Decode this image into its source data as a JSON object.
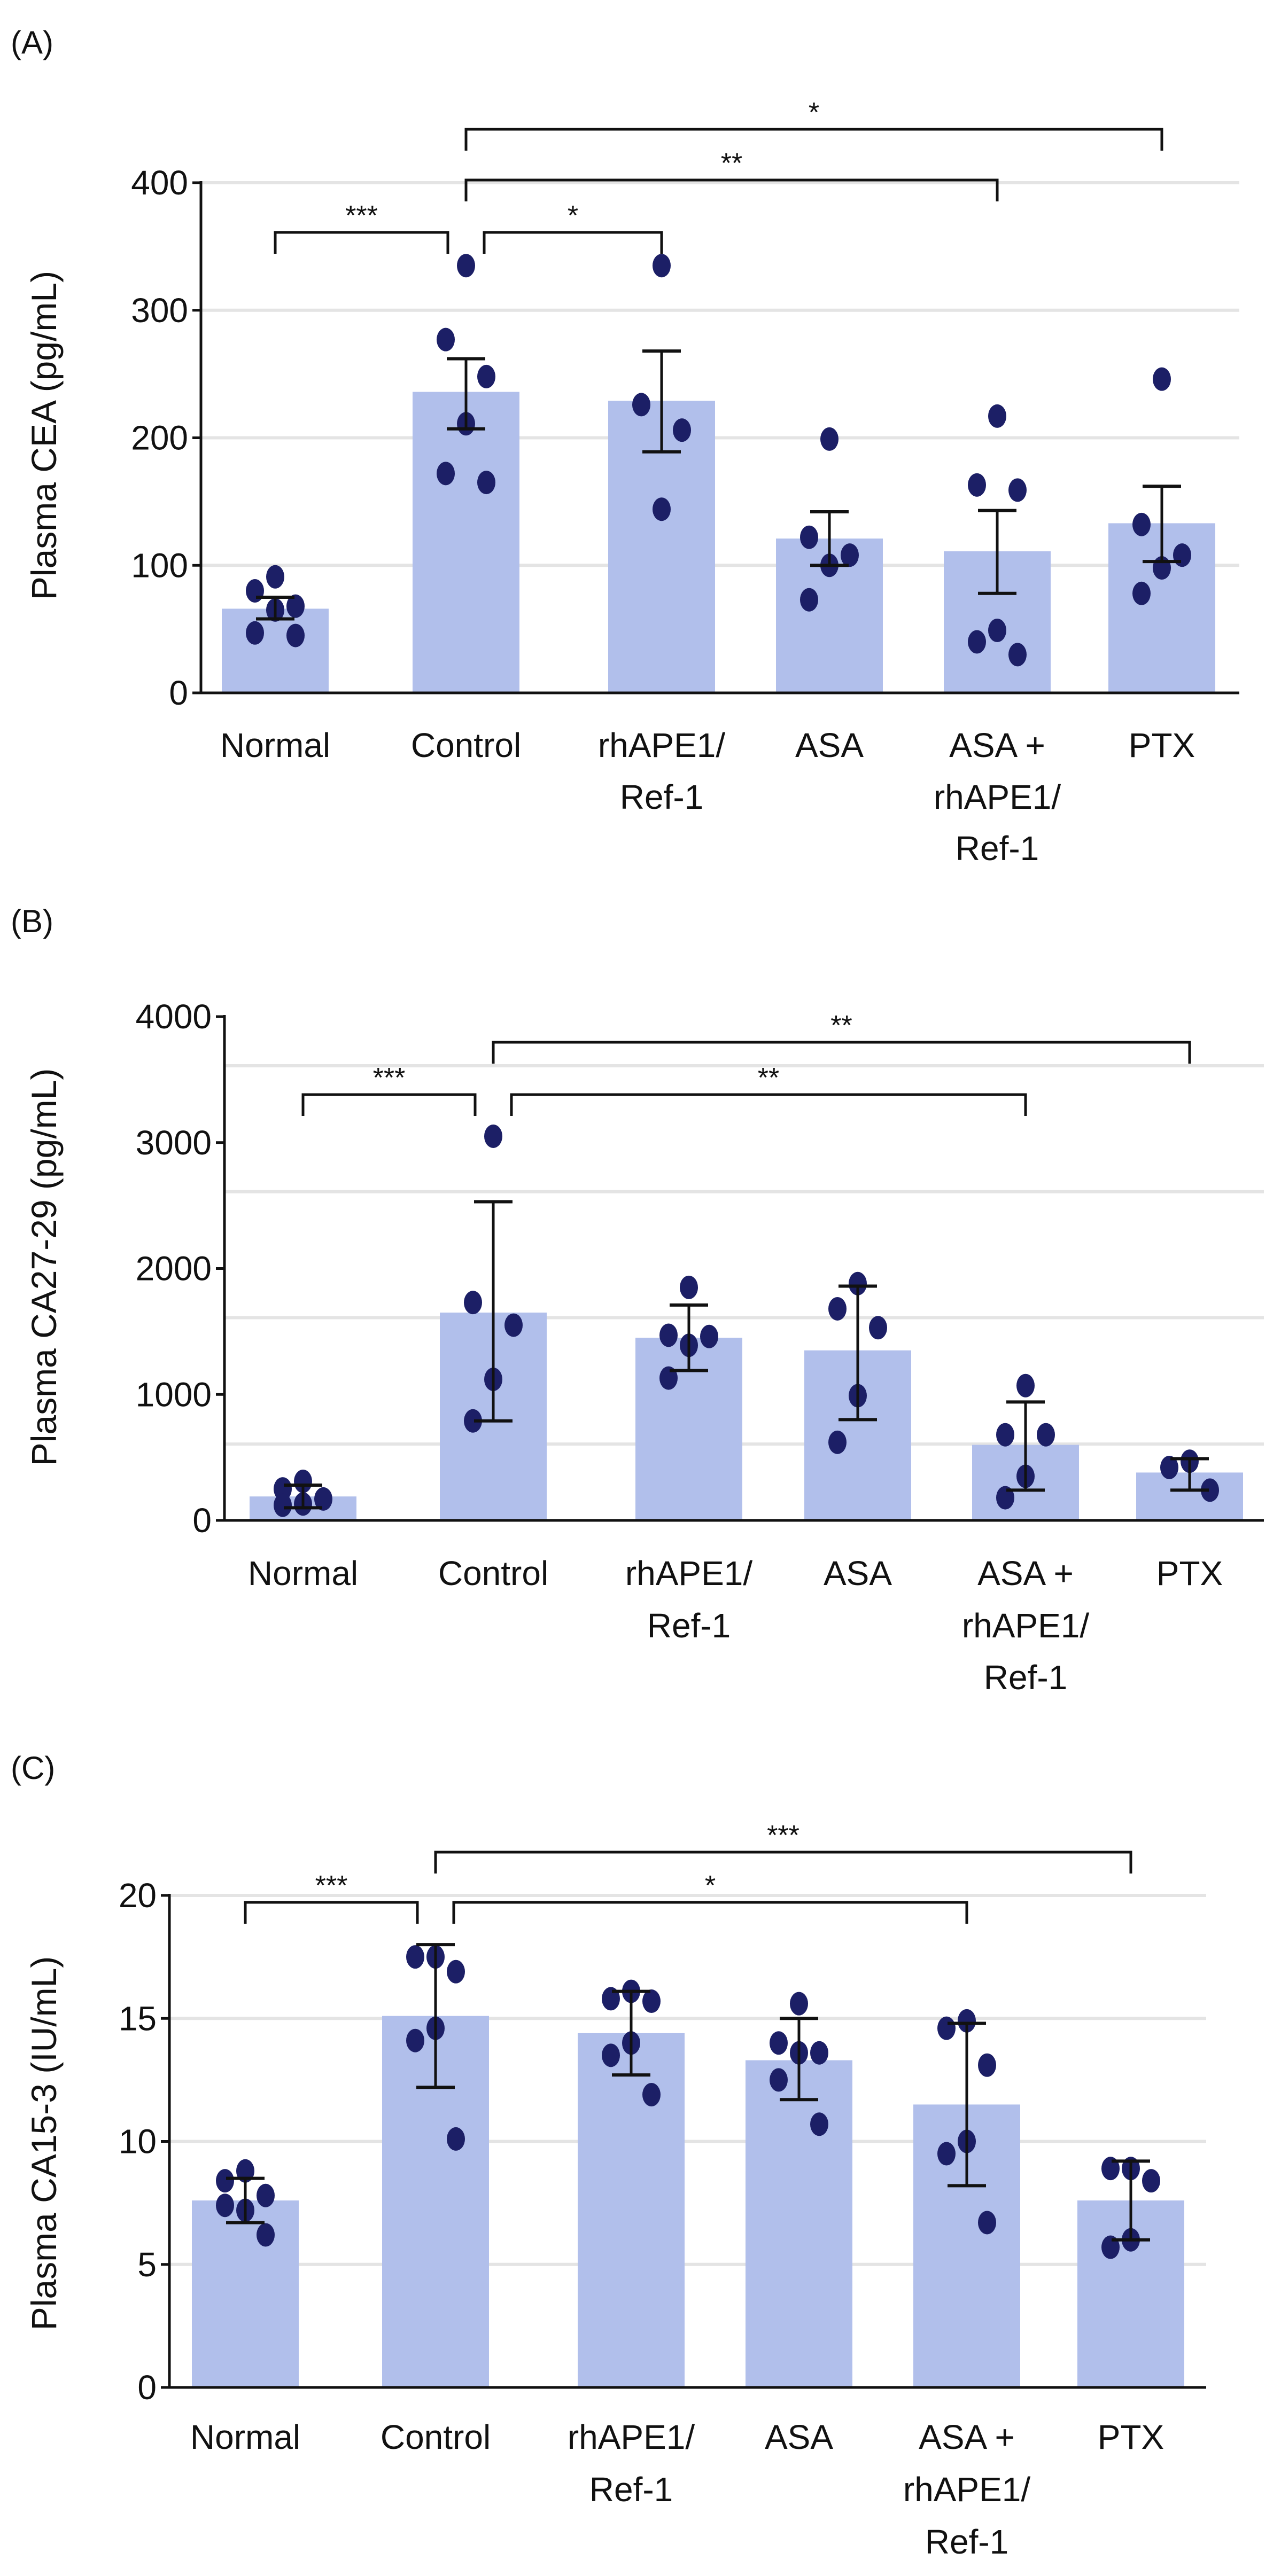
{
  "colors": {
    "bar": "#b1bfeb",
    "dot": "#1c1f66",
    "grid": "#e4e4e4",
    "axis": "#111111"
  },
  "chart_data": [
    {
      "type": "bar",
      "panel": "(A)",
      "ylabel": "Plasma CEA (pg/mL)",
      "ylim": [
        0,
        400
      ],
      "yticks": [
        0,
        100,
        200,
        300,
        400
      ],
      "gridlines": [
        100,
        200,
        300,
        400
      ],
      "categories": [
        [
          "Normal"
        ],
        [
          "Control"
        ],
        [
          "rhAPE1/",
          "Ref-1"
        ],
        [
          "ASA"
        ],
        [
          "ASA +",
          "rhAPE1/",
          "Ref-1"
        ],
        [
          "PTX"
        ]
      ],
      "values": [
        66,
        236,
        229,
        121,
        111,
        133
      ],
      "error_low": [
        58,
        207,
        189,
        100,
        78,
        103
      ],
      "error_high": [
        75,
        262,
        268,
        142,
        143,
        162
      ],
      "points": [
        [
          91,
          80,
          68,
          65,
          47,
          45
        ],
        [
          335,
          277,
          248,
          211,
          172,
          165
        ],
        [
          335,
          226,
          206,
          144
        ],
        [
          199,
          122,
          108,
          100,
          73
        ],
        [
          217,
          163,
          159,
          49,
          40,
          30
        ],
        [
          246,
          132,
          108,
          98,
          78
        ]
      ],
      "significance": [
        {
          "from": 0,
          "to": 1,
          "label": "***",
          "level": 0
        },
        {
          "from": 1,
          "to": 2,
          "label": "*",
          "level": 0
        },
        {
          "from": 1,
          "to": 4,
          "label": "**",
          "level": 1
        },
        {
          "from": 1,
          "to": 5,
          "label": "*",
          "level": 2
        }
      ]
    },
    {
      "type": "bar",
      "panel": "(B)",
      "ylabel": "Plasma CA27-29 (pg/mL)",
      "ylim": [
        0,
        4000
      ],
      "yticks": [
        0,
        1000,
        2000,
        3000,
        4000
      ],
      "gridlines": [
        606,
        1610,
        2610,
        3610
      ],
      "categories": [
        [
          "Normal"
        ],
        [
          "Control"
        ],
        [
          "rhAPE1/",
          "Ref-1"
        ],
        [
          "ASA"
        ],
        [
          "ASA +",
          "rhAPE1/",
          "Ref-1"
        ],
        [
          "PTX"
        ]
      ],
      "values": [
        190,
        1650,
        1450,
        1350,
        600,
        380
      ],
      "error_low": [
        100,
        790,
        1190,
        800,
        240,
        240
      ],
      "error_high": [
        280,
        2530,
        1710,
        1860,
        940,
        490
      ],
      "points": [
        [
          310,
          250,
          170,
          130,
          120
        ],
        [
          3050,
          1730,
          1550,
          1120,
          790
        ],
        [
          1850,
          1470,
          1460,
          1390,
          1130
        ],
        [
          1880,
          1680,
          1530,
          990,
          620
        ],
        [
          1070,
          680,
          680,
          350,
          180
        ],
        [
          470,
          420,
          240
        ]
      ],
      "significance": [
        {
          "from": 0,
          "to": 1,
          "label": "***",
          "level": 0
        },
        {
          "from": 1,
          "to": 4,
          "label": "**",
          "level": 0
        },
        {
          "from": 1,
          "to": 5,
          "label": "**",
          "level": 1
        }
      ]
    },
    {
      "type": "bar",
      "panel": "(C)",
      "ylabel": "Plasma CA15-3 (IU/mL)",
      "ylim": [
        0,
        20
      ],
      "yticks": [
        0,
        5,
        10,
        15,
        20
      ],
      "gridlines": [
        5,
        10,
        15,
        20
      ],
      "categories": [
        [
          "Normal"
        ],
        [
          "Control"
        ],
        [
          "rhAPE1/",
          "Ref-1"
        ],
        [
          "ASA"
        ],
        [
          "ASA +",
          "rhAPE1/",
          "Ref-1"
        ],
        [
          "PTX"
        ]
      ],
      "values": [
        7.6,
        15.1,
        14.4,
        13.3,
        11.5,
        7.6
      ],
      "error_low": [
        6.7,
        12.2,
        12.7,
        11.7,
        8.2,
        6.0
      ],
      "error_high": [
        8.5,
        18.0,
        16.1,
        15.0,
        14.8,
        9.2
      ],
      "points": [
        [
          8.8,
          8.4,
          7.8,
          7.2,
          7.4,
          6.2
        ],
        [
          17.5,
          17.5,
          16.9,
          14.6,
          14.1,
          10.1
        ],
        [
          16.1,
          15.8,
          15.7,
          14.0,
          13.5,
          11.9
        ],
        [
          15.6,
          14.0,
          13.6,
          13.6,
          12.5,
          10.7
        ],
        [
          14.9,
          14.6,
          13.1,
          10.0,
          9.5,
          6.7
        ],
        [
          8.9,
          8.9,
          8.4,
          6.0,
          5.7
        ]
      ],
      "significance": [
        {
          "from": 0,
          "to": 1,
          "label": "***",
          "level": 0
        },
        {
          "from": 1,
          "to": 4,
          "label": "*",
          "level": 0
        },
        {
          "from": 1,
          "to": 5,
          "label": "***",
          "level": 1
        }
      ]
    }
  ]
}
